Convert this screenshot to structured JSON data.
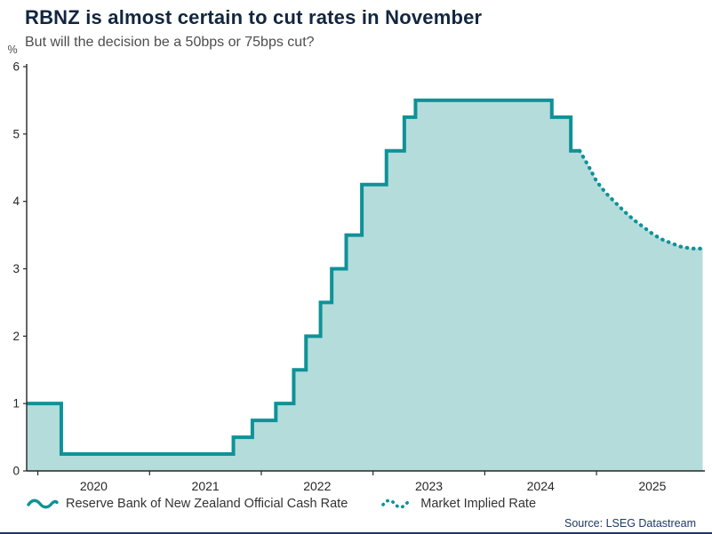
{
  "header": {
    "title": "RBNZ is almost certain to cut rates in November",
    "subtitle": "But will the decision be a 50bps or 75bps cut?"
  },
  "footer": {
    "source": "Source: LSEG Datastream"
  },
  "colors": {
    "line": "#0e9298",
    "fill": "#b4dcdb",
    "axis": "#262626",
    "title": "#12263f",
    "subtitle": "#4d4d4d",
    "source": "#1f3864"
  },
  "chart_data": {
    "type": "line",
    "title": "RBNZ is almost certain to cut rates in November",
    "subtitle": "But will the decision be a 50bps or 75bps cut?",
    "unit": "%",
    "xlabel": "",
    "ylabel": "",
    "ylim": [
      0,
      6
    ],
    "y_ticks": [
      0,
      1,
      2,
      3,
      4,
      5,
      6
    ],
    "xlim": [
      2019.9,
      2025.97
    ],
    "x_year_ticks": [
      2020,
      2021,
      2022,
      2023,
      2024,
      2025
    ],
    "grid": false,
    "legend_position": "bottom",
    "area_fill": true,
    "source": "Source: LSEG Datastream",
    "series": [
      {
        "name": "Reserve Bank of New Zealand Official Cash Rate",
        "type": "step",
        "line_style": "solid",
        "color": "#0e9298",
        "points": [
          [
            2019.9,
            1.0
          ],
          [
            2020.21,
            0.25
          ],
          [
            2021.75,
            0.5
          ],
          [
            2021.92,
            0.75
          ],
          [
            2022.13,
            1.0
          ],
          [
            2022.29,
            1.5
          ],
          [
            2022.4,
            2.0
          ],
          [
            2022.53,
            2.5
          ],
          [
            2022.63,
            3.0
          ],
          [
            2022.76,
            3.5
          ],
          [
            2022.9,
            4.25
          ],
          [
            2023.12,
            4.75
          ],
          [
            2023.28,
            5.25
          ],
          [
            2023.38,
            5.5
          ],
          [
            2024.6,
            5.25
          ],
          [
            2024.77,
            4.75
          ],
          [
            2024.85,
            4.75
          ]
        ]
      },
      {
        "name": "Market Implied Rate",
        "type": "line",
        "line_style": "dotted",
        "color": "#0e9298",
        "points": [
          [
            2024.85,
            4.75
          ],
          [
            2024.93,
            4.52
          ],
          [
            2025.0,
            4.3
          ],
          [
            2025.08,
            4.13
          ],
          [
            2025.17,
            3.98
          ],
          [
            2025.25,
            3.85
          ],
          [
            2025.33,
            3.73
          ],
          [
            2025.42,
            3.62
          ],
          [
            2025.5,
            3.52
          ],
          [
            2025.58,
            3.44
          ],
          [
            2025.67,
            3.38
          ],
          [
            2025.75,
            3.33
          ],
          [
            2025.85,
            3.3
          ],
          [
            2025.95,
            3.3
          ]
        ]
      }
    ]
  }
}
